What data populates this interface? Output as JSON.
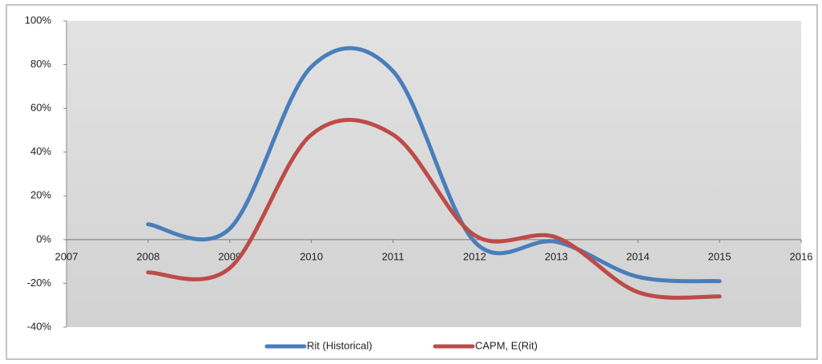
{
  "chart_data": {
    "type": "line",
    "x": [
      2008,
      2009,
      2010,
      2011,
      2012,
      2013,
      2014,
      2015
    ],
    "series": [
      {
        "name": "Rit (Historical)",
        "color": "#4a7ebb",
        "values": [
          7,
          5,
          79,
          77,
          -1,
          -1,
          -17,
          -19
        ]
      },
      {
        "name": "CAPM, E(Rit)",
        "color": "#be4b48",
        "values": [
          -15,
          -13,
          48,
          48,
          2,
          1,
          -24,
          -26
        ]
      }
    ],
    "xlim": [
      2007,
      2016
    ],
    "xticks": [
      2007,
      2008,
      2009,
      2010,
      2011,
      2012,
      2013,
      2014,
      2015,
      2016
    ],
    "ylim": [
      -40,
      100
    ],
    "yticks": [
      {
        "value": -40,
        "label": "-40%"
      },
      {
        "value": -20,
        "label": "-20%"
      },
      {
        "value": 0,
        "label": "0%"
      },
      {
        "value": 20,
        "label": "20%"
      },
      {
        "value": 40,
        "label": "40%"
      },
      {
        "value": 60,
        "label": "60%"
      },
      {
        "value": 80,
        "label": "80%"
      },
      {
        "value": 100,
        "label": "100%"
      }
    ],
    "smooth": true,
    "legend": "bottom"
  }
}
